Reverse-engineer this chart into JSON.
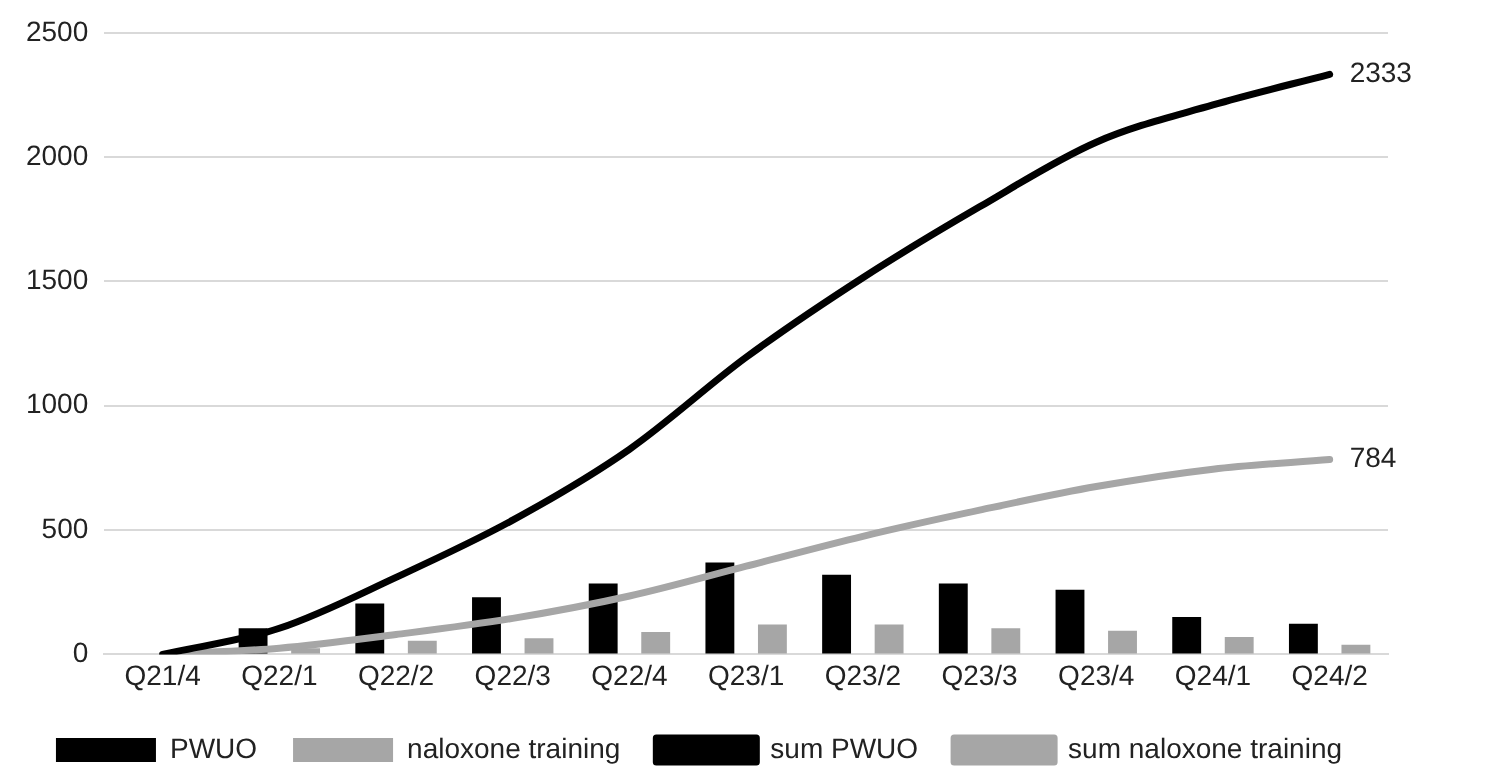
{
  "chart_data": {
    "type": "bar",
    "categories": [
      "Q21/4",
      "Q22/1",
      "Q22/2",
      "Q22/3",
      "Q22/4",
      "Q23/1",
      "Q23/2",
      "Q23/3",
      "Q23/4",
      "Q24/1",
      "Q24/2"
    ],
    "series": [
      {
        "name": "PWUO",
        "color": "#000000",
        "values": [
          0,
          105,
          205,
          230,
          285,
          370,
          320,
          285,
          260,
          150,
          123
        ]
      },
      {
        "name": "naloxone training",
        "color": "#a6a6a6",
        "values": [
          0,
          25,
          55,
          65,
          90,
          120,
          120,
          105,
          95,
          70,
          39
        ]
      },
      {
        "name": "sum PWUO",
        "type": "line",
        "color": "#000000",
        "values": [
          0,
          105,
          310,
          540,
          825,
          1195,
          1515,
          1800,
          2060,
          2210,
          2333
        ],
        "value_labels": [
          null,
          null,
          null,
          null,
          null,
          null,
          null,
          null,
          null,
          null,
          "2333"
        ]
      },
      {
        "name": "sum naloxone training",
        "type": "line",
        "color": "#a6a6a6",
        "values": [
          0,
          25,
          80,
          145,
          235,
          355,
          475,
          580,
          675,
          745,
          784
        ],
        "value_labels": [
          null,
          null,
          null,
          null,
          null,
          null,
          null,
          null,
          null,
          null,
          "784"
        ]
      }
    ],
    "ylim": [
      0,
      2500
    ],
    "yticks": [
      0,
      500,
      1000,
      1500,
      2000,
      2500
    ],
    "grid": "y",
    "legend": "bottom",
    "marker": "none",
    "line_style": "solid"
  }
}
